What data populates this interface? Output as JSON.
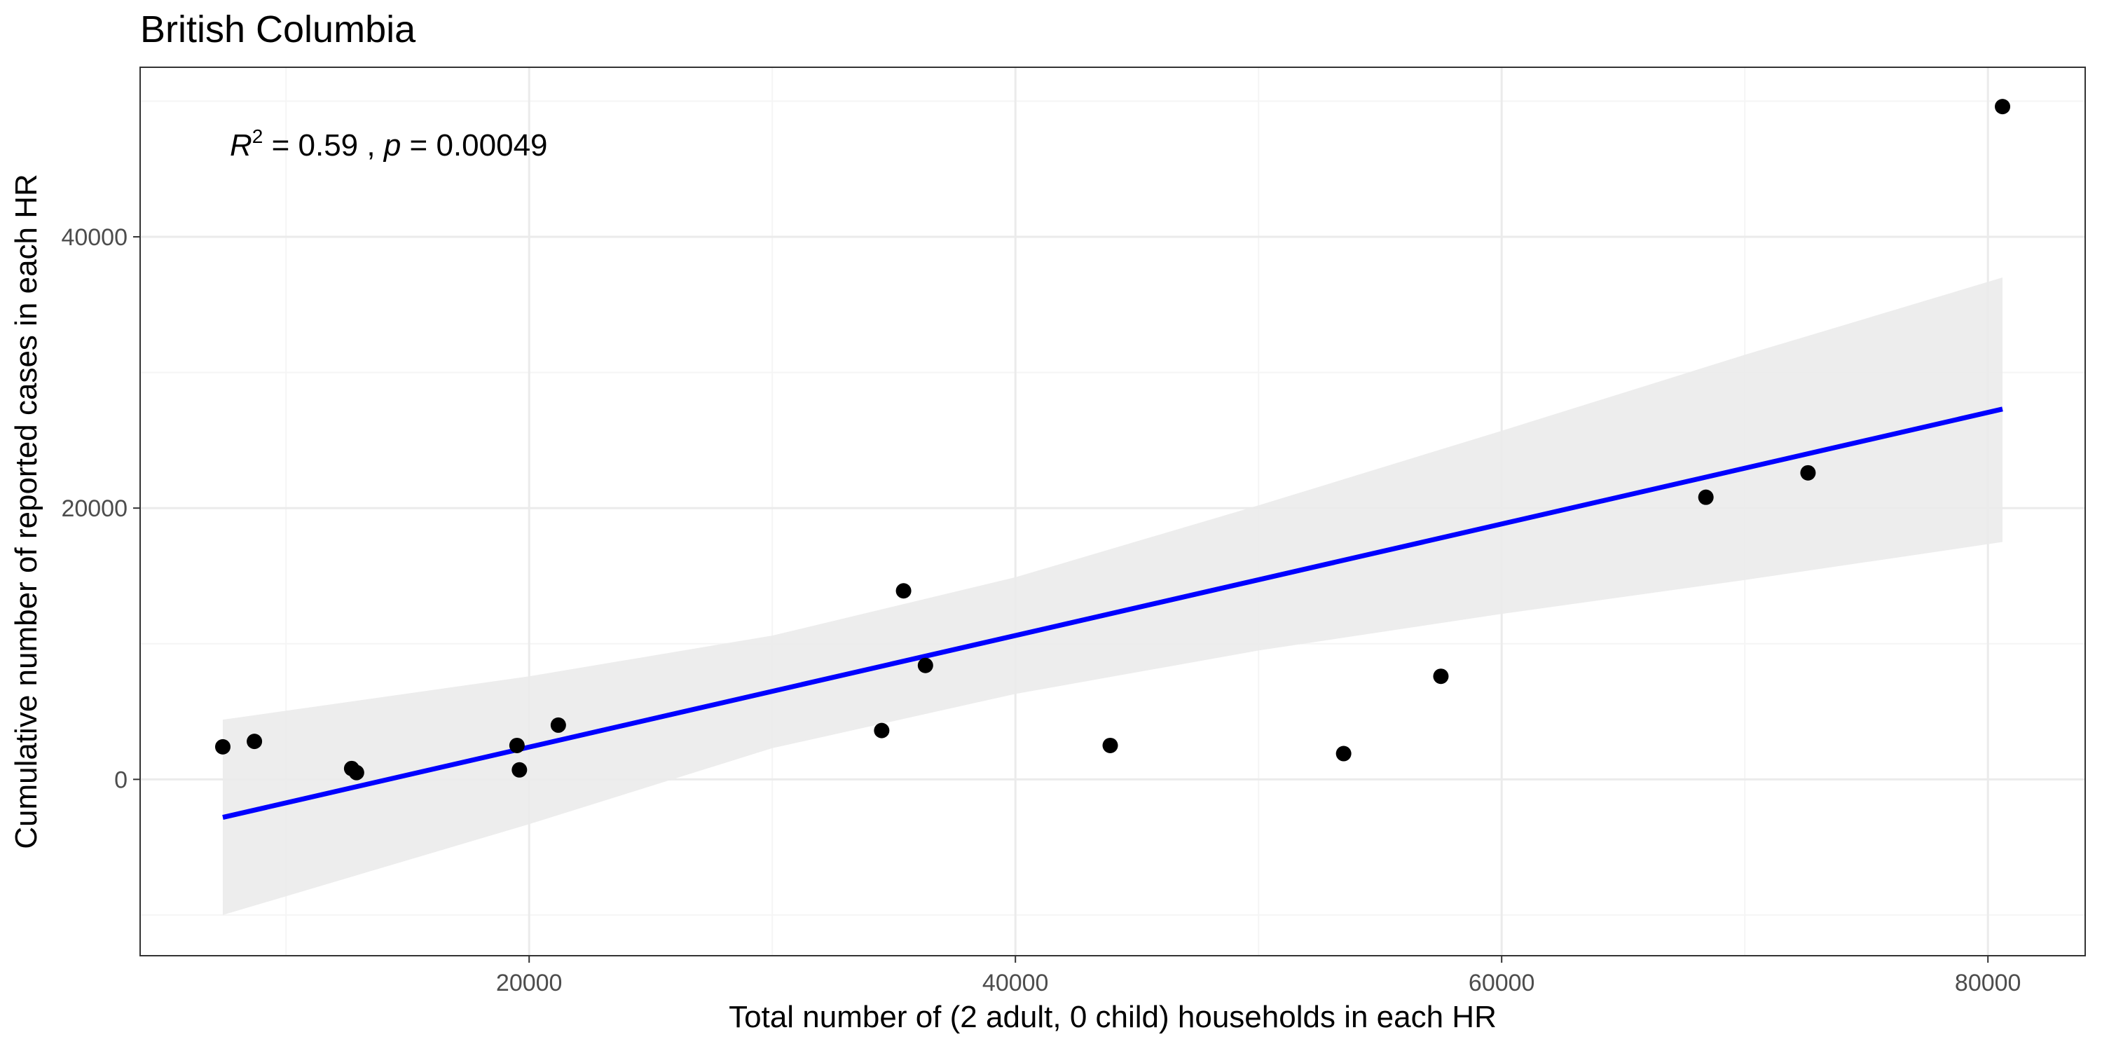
{
  "chart_data": {
    "type": "scatter",
    "title": "British Columbia",
    "xlabel": "Total number of (2 adult, 0 child) households in each HR",
    "ylabel": "Cumulative number of reported cases in each HR",
    "xlim": [
      4000,
      84000
    ],
    "ylim": [
      -13000,
      52500
    ],
    "x_ticks": [
      20000,
      40000,
      60000,
      80000
    ],
    "x_tick_labels": [
      "20000",
      "40000",
      "60000",
      "80000"
    ],
    "x_minor_ticks": [
      10000,
      30000,
      50000,
      70000
    ],
    "y_ticks": [
      0,
      20000,
      40000
    ],
    "y_tick_labels": [
      "0",
      "20000",
      "40000"
    ],
    "y_minor_ticks": [
      -10000,
      10000,
      30000,
      50000
    ],
    "grid": true,
    "annotation": {
      "r_symbol": "R",
      "r_exponent": "2",
      "r_value": " = 0.59",
      "separator": " , ",
      "p_symbol": "p",
      "p_value": " = 0.00049"
    },
    "points": [
      {
        "x": 7400,
        "y": 2400
      },
      {
        "x": 8700,
        "y": 2800
      },
      {
        "x": 12700,
        "y": 800
      },
      {
        "x": 12900,
        "y": 500
      },
      {
        "x": 19500,
        "y": 2500
      },
      {
        "x": 19600,
        "y": 700
      },
      {
        "x": 21200,
        "y": 4000
      },
      {
        "x": 34500,
        "y": 3600
      },
      {
        "x": 35400,
        "y": 13900
      },
      {
        "x": 36300,
        "y": 8400
      },
      {
        "x": 43900,
        "y": 2500
      },
      {
        "x": 53500,
        "y": 1900
      },
      {
        "x": 57500,
        "y": 7600
      },
      {
        "x": 68400,
        "y": 20800
      },
      {
        "x": 72600,
        "y": 22600
      },
      {
        "x": 80600,
        "y": 49600
      }
    ],
    "fit_line": {
      "x": [
        7400,
        80600
      ],
      "y": [
        -2800,
        27300
      ]
    },
    "confidence_band": {
      "x": [
        7400,
        20000,
        30000,
        40000,
        50000,
        60000,
        70000,
        80600
      ],
      "lower": [
        -10000,
        -3300,
        2300,
        6300,
        9500,
        12200,
        14700,
        17500
      ],
      "upper": [
        4400,
        7600,
        10600,
        14900,
        20200,
        25700,
        31300,
        37000
      ]
    },
    "colors": {
      "points": "#000000",
      "fit_line": "#0000ff",
      "band": "#ebebeb",
      "grid_major": "#ebebeb",
      "grid_minor": "#f5f5f5",
      "panel_border": "#333333"
    }
  }
}
